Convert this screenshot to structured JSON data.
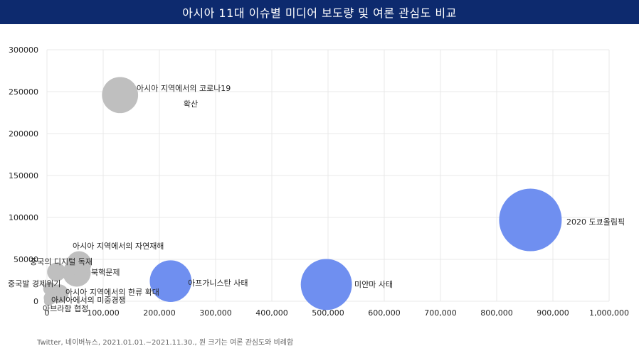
{
  "header": {
    "title": "아시아 11대 이슈별 미디어 보도량 및 여론 관심도 비교",
    "background": "#0d2a6e"
  },
  "footnote": "Twitter, 네이버뉴스, 2021.01.01.~2021.11.30., 원 크기는 여론 관심도와 비례함",
  "colors": {
    "highlight": "#6f8ff0",
    "normal": "#bfbfbf",
    "grid": "#e8e8e8"
  },
  "chart_data": {
    "type": "scatter",
    "variant": "bubble",
    "title": "아시아 11대 이슈별 미디어 보도량 및 여론 관심도 비교",
    "xlim": [
      0,
      1000000
    ],
    "ylim": [
      0,
      300000
    ],
    "x_ticks": [
      "0",
      "100,000",
      "200,000",
      "300,000",
      "400,000",
      "500,000",
      "600,000",
      "700,000",
      "800,000",
      "900,000",
      "1,000,000"
    ],
    "y_ticks": [
      "0",
      "50000",
      "100000",
      "150000",
      "200000",
      "250000",
      "300000"
    ],
    "grid": true,
    "points": [
      {
        "label": "2020 도쿄올림픽",
        "x": 860000,
        "y": 97000,
        "size": 45,
        "highlight": true
      },
      {
        "label": "미얀마 사태",
        "x": 497000,
        "y": 20000,
        "size": 30,
        "highlight": true
      },
      {
        "label": "아프가니스탄 사태",
        "x": 220000,
        "y": 24000,
        "size": 20,
        "highlight": true
      },
      {
        "label": "아시아 지역에서의 코로나19 확산",
        "x": 130000,
        "y": 246000,
        "size": 15,
        "highlight": false
      },
      {
        "label": "아시아 지역에서의 자연재해",
        "x": 57000,
        "y": 45000,
        "size": 7,
        "highlight": false
      },
      {
        "label": "중국의 디지털 독재",
        "x": 17000,
        "y": 35000,
        "size": 4,
        "highlight": false
      },
      {
        "label": "북핵문제",
        "x": 53000,
        "y": 34000,
        "size": 9,
        "highlight": false
      },
      {
        "label": "중국발 경제위기",
        "x": 5000,
        "y": 15000,
        "size": 2,
        "highlight": false
      },
      {
        "label": "아시아 지역에서의 한류 확대",
        "x": 22000,
        "y": 9000,
        "size": 4,
        "highlight": false
      },
      {
        "label": "아시아에서의 미중경쟁",
        "x": 6000,
        "y": 4000,
        "size": 2,
        "highlight": false
      },
      {
        "label": "아브라함 협정",
        "x": 3000,
        "y": 0,
        "size": 1,
        "highlight": false
      }
    ]
  }
}
